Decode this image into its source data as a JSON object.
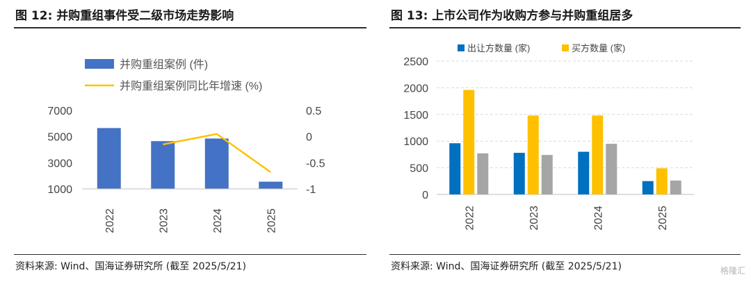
{
  "left": {
    "title": "图 12:  并购重组事件受二级市场走势影响",
    "source": "资料来源: Wind、国海证券研究所 (截至 2025/5/21)"
  },
  "right": {
    "title": "图 13:  上市公司作为收购方参与并购重组居多",
    "source": "资料来源: Wind、国海证券研究所 (截至 2025/5/21)"
  },
  "watermark": "格隆汇",
  "chart_data": [
    {
      "type": "bar",
      "categories": [
        "2022",
        "2023",
        "2024",
        "2025"
      ],
      "series": [
        {
          "name": "并购重组案例 (件)",
          "type": "bar",
          "axis": "left",
          "color": "#4472C4",
          "values": [
            5650,
            4650,
            4850,
            1550
          ]
        },
        {
          "name": "并购重组案例同比年增速 (%)",
          "type": "line",
          "axis": "right",
          "color": "#FFC000",
          "values": [
            null,
            -0.15,
            0.05,
            -0.68
          ]
        }
      ],
      "yticks_left": [
        1000,
        3000,
        5000,
        7000
      ],
      "ylim_left": [
        1000,
        7000
      ],
      "yticks_right": [
        "0.5",
        "0",
        "-0.5",
        "-1"
      ],
      "ylim_right": [
        -1,
        0.5
      ],
      "legend": "top-left"
    },
    {
      "type": "bar",
      "categories": [
        "2022",
        "2023",
        "2024",
        "2025"
      ],
      "series": [
        {
          "name": "出让方数量 (家)",
          "color": "#0070C0",
          "values": [
            960,
            780,
            800,
            250
          ]
        },
        {
          "name": "买方数量 (家)",
          "color": "#FFC000",
          "values": [
            1960,
            1480,
            1480,
            490
          ]
        },
        {
          "name": "",
          "color": "#A5A5A5",
          "values": [
            770,
            740,
            950,
            260
          ]
        }
      ],
      "yticks": [
        0,
        500,
        1000,
        1500,
        2000,
        2500
      ],
      "ylim": [
        0,
        2500
      ],
      "grid": true,
      "legend": "top"
    }
  ]
}
